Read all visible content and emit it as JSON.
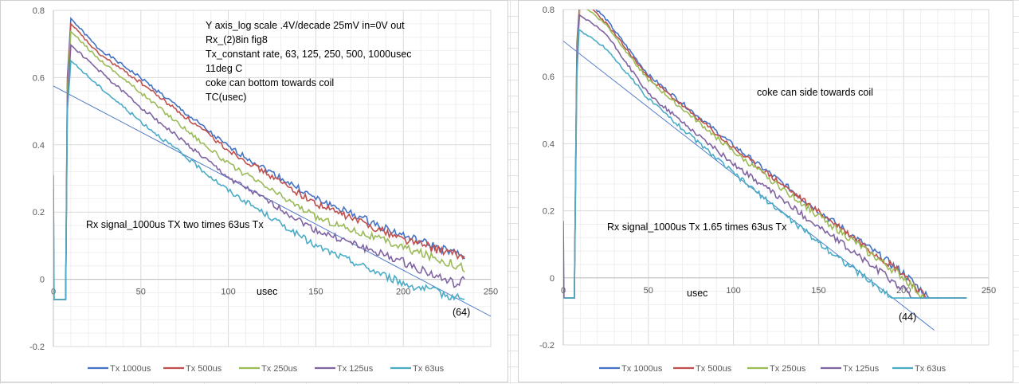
{
  "colors": {
    "Tx 1000us": "#4472C4",
    "Tx 500us": "#C0504D",
    "Tx 250us": "#9BBB59",
    "Tx 125us": "#8064A2",
    "Tx 63us": "#4BACC6",
    "fit": "#4472C4"
  },
  "chart_data": [
    {
      "type": "line",
      "xlabel": "usec",
      "xlim": [
        0,
        250
      ],
      "ylim": [
        -0.2,
        0.8
      ],
      "xticks": [
        "0",
        "50",
        "100",
        "150",
        "200",
        "250"
      ],
      "yticks": [
        "0.8",
        "0.6",
        "0.4",
        "0.2",
        "0",
        "-0.2"
      ],
      "grid": true,
      "legend": "bottom",
      "annotations": [
        "Y axis_log scale .4V/decade 25mV in=0V out",
        "Rx_(2)8in fig8",
        "Tx_constant rate, 63, 125, 250, 500, 1000usec",
        "11deg C",
        "coke can bottom towards coil",
        "TC(usec)"
      ],
      "note": "Rx signal_1000us TX two times 63us Tx",
      "fit_label": "(64)",
      "fit_line": [
        [
          0,
          0.575
        ],
        [
          250,
          -0.11
        ]
      ],
      "series": [
        {
          "name": "Tx  1000us",
          "points": [
            [
              0,
              -0.06
            ],
            [
              7,
              -0.06
            ],
            [
              8,
              0.6
            ],
            [
              10,
              0.776
            ],
            [
              25,
              0.69
            ],
            [
              50,
              0.599
            ],
            [
              100,
              0.394
            ],
            [
              150,
              0.24
            ],
            [
              200,
              0.13
            ],
            [
              235,
              0.067
            ]
          ]
        },
        {
          "name": "Tx 500us",
          "points": [
            [
              0,
              -0.06
            ],
            [
              7,
              -0.06
            ],
            [
              8,
              0.58
            ],
            [
              10,
              0.76
            ],
            [
              25,
              0.675
            ],
            [
              50,
              0.585
            ],
            [
              100,
              0.385
            ],
            [
              150,
              0.225
            ],
            [
              200,
              0.12
            ],
            [
              235,
              0.065
            ]
          ]
        },
        {
          "name": "Tx 250us",
          "points": [
            [
              0,
              -0.06
            ],
            [
              7,
              -0.06
            ],
            [
              8,
              0.56
            ],
            [
              10,
              0.737
            ],
            [
              25,
              0.66
            ],
            [
              50,
              0.555
            ],
            [
              100,
              0.343
            ],
            [
              150,
              0.185
            ],
            [
              200,
              0.095
            ],
            [
              235,
              0.035
            ]
          ]
        },
        {
          "name": "Tx 125us",
          "points": [
            [
              0,
              0.27
            ],
            [
              0.4,
              -0.06
            ],
            [
              7,
              -0.06
            ],
            [
              8,
              0.53
            ],
            [
              10,
              0.697
            ],
            [
              25,
              0.626
            ],
            [
              50,
              0.512
            ],
            [
              100,
              0.303
            ],
            [
              150,
              0.146
            ],
            [
              200,
              0.051
            ],
            [
              232,
              -0.02
            ],
            [
              235,
              0.004
            ]
          ]
        },
        {
          "name": "Tx 63us",
          "points": [
            [
              0,
              0.31
            ],
            [
              0.4,
              -0.06
            ],
            [
              7,
              -0.06
            ],
            [
              8,
              0.5
            ],
            [
              10,
              0.65
            ],
            [
              25,
              0.579
            ],
            [
              50,
              0.469
            ],
            [
              100,
              0.264
            ],
            [
              150,
              0.099
            ],
            [
              200,
              -0.012
            ],
            [
              235,
              -0.06
            ]
          ]
        }
      ]
    },
    {
      "type": "line",
      "xlabel": "usec",
      "xlim": [
        0,
        250
      ],
      "ylim": [
        -0.2,
        0.8
      ],
      "xticks": [
        "0",
        "50",
        "100",
        "150",
        "200",
        "250"
      ],
      "yticks": [
        "0.8",
        "0.6",
        "0.4",
        "0.2",
        "0",
        "-0.2"
      ],
      "grid": true,
      "legend": "bottom",
      "annotations": [
        "coke can side towards coil"
      ],
      "note": "Rx signal_1000us Tx 1.65 times 63us Tx",
      "fit_label": "(44)",
      "fit_line": [
        [
          0,
          0.706
        ],
        [
          218,
          -0.156
        ]
      ],
      "series": [
        {
          "name": "Tx  1000us",
          "points": [
            [
              0,
              -0.06
            ],
            [
              6.5,
              -0.06
            ],
            [
              8,
              0.7
            ],
            [
              10,
              0.85
            ],
            [
              25,
              0.772
            ],
            [
              50,
              0.605
            ],
            [
              100,
              0.395
            ],
            [
              150,
              0.2
            ],
            [
              200,
              0.014
            ],
            [
              215,
              -0.06
            ],
            [
              237,
              -0.06
            ]
          ]
        },
        {
          "name": "Tx 500us",
          "points": [
            [
              0,
              -0.06
            ],
            [
              6.5,
              -0.06
            ],
            [
              8,
              0.69
            ],
            [
              10,
              0.84
            ],
            [
              25,
              0.76
            ],
            [
              50,
              0.598
            ],
            [
              100,
              0.387
            ],
            [
              150,
              0.197
            ],
            [
              200,
              0.012
            ],
            [
              213,
              -0.06
            ],
            [
              237,
              -0.06
            ]
          ]
        },
        {
          "name": "Tx 250us",
          "points": [
            [
              0,
              -0.06
            ],
            [
              6.5,
              -0.06
            ],
            [
              8,
              0.68
            ],
            [
              10,
              0.82
            ],
            [
              25,
              0.756
            ],
            [
              50,
              0.59
            ],
            [
              100,
              0.376
            ],
            [
              150,
              0.185
            ],
            [
              200,
              0.0
            ],
            [
              212,
              -0.06
            ],
            [
              237,
              -0.06
            ]
          ]
        },
        {
          "name": "Tx 125us",
          "points": [
            [
              0,
              0.17
            ],
            [
              0.4,
              -0.06
            ],
            [
              6.5,
              -0.06
            ],
            [
              8,
              0.65
            ],
            [
              9.5,
              0.784
            ],
            [
              25,
              0.728
            ],
            [
              50,
              0.548
            ],
            [
              100,
              0.34
            ],
            [
              150,
              0.153
            ],
            [
              200,
              -0.033
            ],
            [
              205,
              -0.06
            ],
            [
              237,
              -0.06
            ]
          ]
        },
        {
          "name": "Tx 63us",
          "points": [
            [
              0,
              -0.06
            ],
            [
              6.5,
              -0.06
            ],
            [
              8,
              0.6
            ],
            [
              9.3,
              0.74
            ],
            [
              25,
              0.685
            ],
            [
              50,
              0.534
            ],
            [
              100,
              0.312
            ],
            [
              150,
              0.106
            ],
            [
              193,
              -0.06
            ],
            [
              237,
              -0.06
            ]
          ]
        }
      ]
    }
  ]
}
